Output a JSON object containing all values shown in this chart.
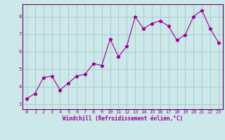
{
  "x": [
    0,
    1,
    2,
    3,
    4,
    5,
    6,
    7,
    8,
    9,
    10,
    11,
    12,
    13,
    14,
    15,
    16,
    17,
    18,
    19,
    20,
    21,
    22,
    23
  ],
  "y": [
    3.3,
    3.6,
    4.5,
    4.6,
    3.8,
    4.2,
    4.6,
    4.7,
    5.3,
    5.2,
    6.7,
    5.7,
    6.3,
    7.98,
    7.3,
    7.6,
    7.75,
    7.45,
    6.65,
    6.95,
    8.0,
    8.35,
    7.3,
    6.5
  ],
  "line_color": "#990099",
  "marker": "*",
  "marker_size": 3.5,
  "bg_color": "#cce8e8",
  "grid_color": "#aacccc",
  "ylabel_ticks": [
    3,
    4,
    5,
    6,
    7,
    8
  ],
  "xlabel_ticks": [
    0,
    1,
    2,
    3,
    4,
    5,
    6,
    7,
    8,
    9,
    10,
    11,
    12,
    13,
    14,
    15,
    16,
    17,
    18,
    19,
    20,
    21,
    22,
    23
  ],
  "xlabel_label": "Windchill (Refroidissement éolien,°C)",
  "ylim": [
    2.7,
    8.7
  ],
  "xlim": [
    -0.5,
    23.5
  ],
  "tick_color": "#990099",
  "label_color": "#990099",
  "spine_color": "#660066",
  "tick_fontsize": 5.0,
  "label_fontsize": 5.5
}
